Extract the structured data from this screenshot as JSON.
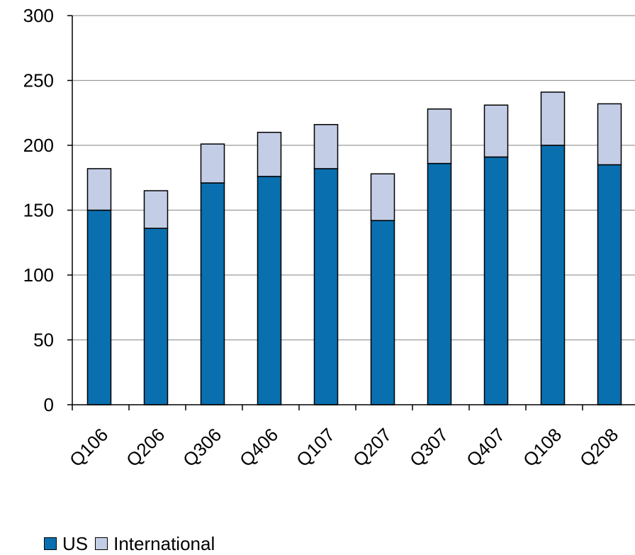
{
  "chart_data": {
    "type": "bar",
    "stacked": true,
    "categories": [
      "Q106",
      "Q206",
      "Q306",
      "Q406",
      "Q107",
      "Q207",
      "Q307",
      "Q407",
      "Q108",
      "Q208"
    ],
    "series": [
      {
        "name": "US",
        "color": "#0a6fae",
        "values": [
          150,
          136,
          171,
          176,
          182,
          142,
          186,
          191,
          200,
          185
        ]
      },
      {
        "name": "International",
        "color": "#c3cde6",
        "values": [
          32,
          29,
          30,
          34,
          34,
          36,
          42,
          40,
          41,
          47
        ]
      }
    ],
    "title": "",
    "xlabel": "",
    "ylabel": "",
    "ylim": [
      0,
      300
    ],
    "yticks": [
      0,
      50,
      100,
      150,
      200,
      250,
      300
    ],
    "grid": true,
    "legend_position": "bottom-left"
  }
}
